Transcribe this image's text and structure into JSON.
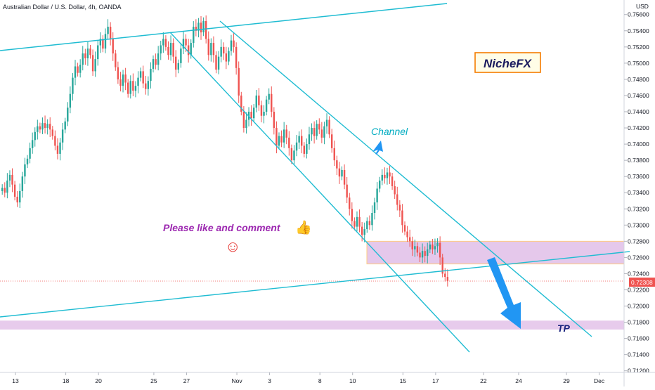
{
  "header": {
    "title": "Australian Dollar / U.S. Dollar, 4h, OANDA",
    "currency": "USD"
  },
  "colors": {
    "up": "#26a69a",
    "down": "#ef5350",
    "line": "#1fbcd2",
    "zone_fill": "#e1bee7",
    "zone_border": "#ffcc80",
    "price_badge": "#ef5350",
    "arrow": "#2196f3",
    "annotation_purple": "#9c27b0",
    "channel_text": "#00acc1",
    "brand_border": "#f57c00"
  },
  "chart_data": {
    "type": "candlestick",
    "title": "Australian Dollar / U.S. Dollar, 4h, OANDA",
    "y_ticks": [
      "0.71200",
      "0.71400",
      "0.71600",
      "0.71800",
      "0.72000",
      "0.72200",
      "0.72400",
      "0.72600",
      "0.72800",
      "0.73000",
      "0.73200",
      "0.73400",
      "0.73600",
      "0.73800",
      "0.74000",
      "0.74200",
      "0.74400",
      "0.74600",
      "0.74800",
      "0.75000",
      "0.75200",
      "0.75400",
      "0.75600"
    ],
    "y_range": [
      0.7118,
      0.7578
    ],
    "x_ticks": [
      {
        "label": "13",
        "i": 0
      },
      {
        "label": "18",
        "i": 20
      },
      {
        "label": "20",
        "i": 33
      },
      {
        "label": "25",
        "i": 55
      },
      {
        "label": "27",
        "i": 68
      },
      {
        "label": "Nov",
        "i": 88
      },
      {
        "label": "3",
        "i": 101
      },
      {
        "label": "8",
        "i": 121
      },
      {
        "label": "10",
        "i": 134
      },
      {
        "label": "15",
        "i": 154
      },
      {
        "label": "17",
        "i": 167
      },
      {
        "label": "22",
        "i": 186
      },
      {
        "label": "24",
        "i": 200
      },
      {
        "label": "29",
        "i": 219
      },
      {
        "label": "Dec",
        "i": 232
      }
    ],
    "last_price": "0.72308",
    "closes": [
      0.7346,
      0.734,
      0.7355,
      0.7362,
      0.735,
      0.7335,
      0.7328,
      0.7342,
      0.736,
      0.7375,
      0.7382,
      0.7395,
      0.7405,
      0.7415,
      0.7422,
      0.7418,
      0.7426,
      0.742,
      0.7425,
      0.7418,
      0.741,
      0.7398,
      0.7388,
      0.7402,
      0.7418,
      0.7428,
      0.7445,
      0.7462,
      0.7482,
      0.7496,
      0.7488,
      0.7498,
      0.7512,
      0.7506,
      0.7518,
      0.751,
      0.749,
      0.7505,
      0.7522,
      0.753,
      0.7518,
      0.7536,
      0.7545,
      0.753,
      0.7512,
      0.7495,
      0.748,
      0.7472,
      0.7486,
      0.7476,
      0.7462,
      0.7478,
      0.7466,
      0.7472,
      0.7482,
      0.749,
      0.7475,
      0.7468,
      0.7478,
      0.7493,
      0.7505,
      0.7498,
      0.7512,
      0.7522,
      0.753,
      0.752,
      0.751,
      0.7525,
      0.7508,
      0.7492,
      0.75,
      0.7518,
      0.753,
      0.7522,
      0.751,
      0.7525,
      0.7545,
      0.754,
      0.755,
      0.7538,
      0.7552,
      0.753,
      0.751,
      0.7525,
      0.751,
      0.7492,
      0.7508,
      0.752,
      0.7512,
      0.7502,
      0.7515,
      0.7528,
      0.752,
      0.7494,
      0.746,
      0.744,
      0.742,
      0.743,
      0.744,
      0.7432,
      0.7445,
      0.746,
      0.7448,
      0.7435,
      0.744,
      0.7455,
      0.7462,
      0.744,
      0.742,
      0.7398,
      0.741,
      0.7402,
      0.7418,
      0.7408,
      0.7395,
      0.738,
      0.7392,
      0.7402,
      0.741,
      0.7398,
      0.7388,
      0.74,
      0.7412,
      0.742,
      0.741,
      0.7425,
      0.7418,
      0.7408,
      0.7422,
      0.743,
      0.7412,
      0.7395,
      0.738,
      0.737,
      0.736,
      0.7368,
      0.735,
      0.7334,
      0.732,
      0.7305,
      0.7298,
      0.731,
      0.7298,
      0.7288,
      0.7295,
      0.7305,
      0.73,
      0.7315,
      0.7328,
      0.7345,
      0.7355,
      0.7362,
      0.7358,
      0.7365,
      0.736,
      0.7348,
      0.7338,
      0.7325,
      0.7318,
      0.73,
      0.7292,
      0.7285,
      0.728,
      0.727,
      0.7274,
      0.7266,
      0.726,
      0.7268,
      0.7262,
      0.727,
      0.7276,
      0.727,
      0.7274,
      0.7278,
      0.726,
      0.724,
      0.7236,
      0.7231
    ]
  },
  "annotations": {
    "channel_label": "Channel",
    "like_text": "Please like and comment",
    "smiley": "☺",
    "thumbs": "👍",
    "tp_label": "TP",
    "brand": "NicheFX"
  }
}
